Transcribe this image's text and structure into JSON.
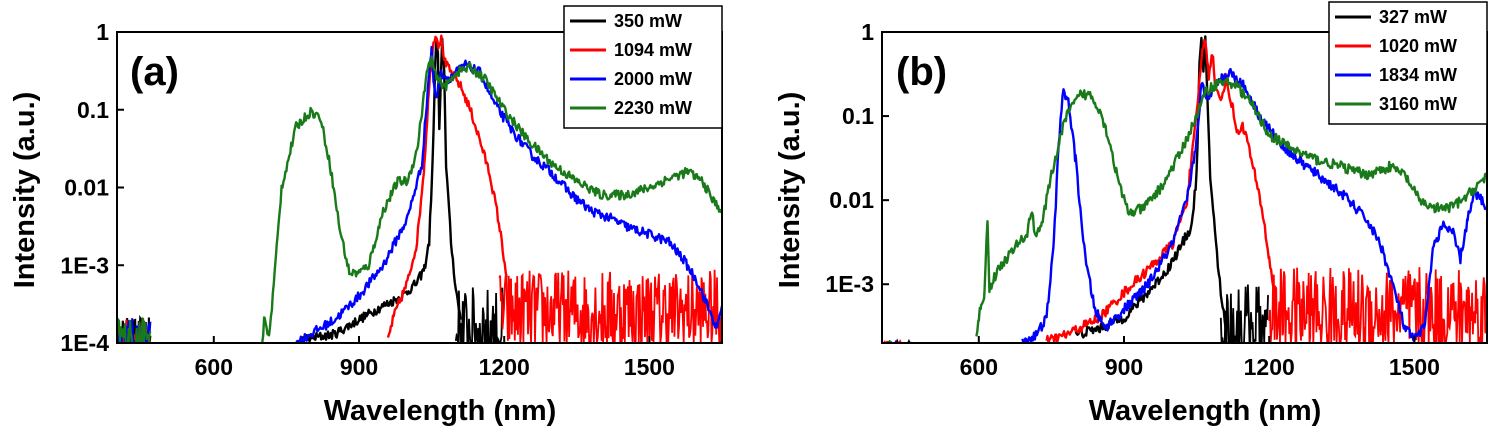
{
  "chart_data": [
    {
      "type": "line",
      "panel_label": "(a)",
      "xlabel": "Wavelength (nm)",
      "ylabel": "Intensity (a.u.)",
      "xlim": [
        400,
        1650
      ],
      "ylim": [
        0.0001,
        1
      ],
      "yscale": "log",
      "x_ticks": [
        {
          "value": 600,
          "label": "600"
        },
        {
          "value": 900,
          "label": "900"
        },
        {
          "value": 1200,
          "label": "1200"
        },
        {
          "value": 1500,
          "label": "1500"
        }
      ],
      "y_ticks": [
        {
          "value": 1,
          "label": "1"
        },
        {
          "value": 0.1,
          "label": "0.1"
        },
        {
          "value": 0.01,
          "label": "0.01"
        },
        {
          "value": 0.001,
          "label": "1E-3"
        },
        {
          "value": 0.0001,
          "label": "1E-4"
        }
      ],
      "legend_position": "top-right",
      "series": [
        {
          "name": "350 mW",
          "color": "#000000",
          "noise_floor": 0.00015,
          "noise_range": [
            1100,
            1200
          ],
          "points": [
            [
              780,
              0.00011
            ],
            [
              850,
              0.00013
            ],
            [
              900,
              0.0002
            ],
            [
              950,
              0.0003
            ],
            [
              990,
              0.0004
            ],
            [
              1020,
              0.0006
            ],
            [
              1035,
              0.0009
            ],
            [
              1045,
              0.002
            ],
            [
              1052,
              0.02
            ],
            [
              1057,
              0.3
            ],
            [
              1060,
              0.85
            ],
            [
              1063,
              0.5
            ],
            [
              1066,
              0.05
            ],
            [
              1072,
              0.9
            ],
            [
              1076,
              0.3
            ],
            [
              1080,
              0.02
            ],
            [
              1090,
              0.002
            ],
            [
              1100,
              0.0005
            ],
            [
              1110,
              0.0002
            ]
          ]
        },
        {
          "name": "1094 mW",
          "color": "#ff0000",
          "noise_floor": 0.00025,
          "noise_range": [
            1190,
            1650
          ],
          "points": [
            [
              960,
              0.00011
            ],
            [
              970,
              0.0002
            ],
            [
              980,
              0.0003
            ],
            [
              1000,
              0.0006
            ],
            [
              1020,
              0.002
            ],
            [
              1035,
              0.02
            ],
            [
              1045,
              0.2
            ],
            [
              1052,
              0.6
            ],
            [
              1058,
              0.98
            ],
            [
              1064,
              0.7
            ],
            [
              1070,
              0.8
            ],
            [
              1078,
              0.4
            ],
            [
              1090,
              0.3
            ],
            [
              1110,
              0.2
            ],
            [
              1130,
              0.1
            ],
            [
              1150,
              0.04
            ],
            [
              1170,
              0.015
            ],
            [
              1185,
              0.005
            ],
            [
              1195,
              0.002
            ],
            [
              1205,
              0.0007
            ]
          ]
        },
        {
          "name": "2000 mW",
          "color": "#0000ff",
          "noise_floor": null,
          "noise_range": null,
          "points": [
            [
              770,
              0.0001
            ],
            [
              800,
              0.00013
            ],
            [
              850,
              0.0002
            ],
            [
              900,
              0.0004
            ],
            [
              950,
              0.001
            ],
            [
              1000,
              0.004
            ],
            [
              1030,
              0.02
            ],
            [
              1045,
              0.3
            ],
            [
              1050,
              0.6
            ],
            [
              1055,
              0.2
            ],
            [
              1060,
              0.15
            ],
            [
              1070,
              0.3
            ],
            [
              1085,
              0.25
            ],
            [
              1100,
              0.3
            ],
            [
              1120,
              0.38
            ],
            [
              1150,
              0.3
            ],
            [
              1180,
              0.12
            ],
            [
              1220,
              0.05
            ],
            [
              1260,
              0.025
            ],
            [
              1300,
              0.015
            ],
            [
              1340,
              0.008
            ],
            [
              1380,
              0.005
            ],
            [
              1420,
              0.004
            ],
            [
              1460,
              0.003
            ],
            [
              1500,
              0.0025
            ],
            [
              1540,
              0.002
            ],
            [
              1570,
              0.0012
            ],
            [
              1600,
              0.0006
            ],
            [
              1620,
              0.0003
            ],
            [
              1640,
              0.00015
            ],
            [
              1650,
              0.0003
            ]
          ]
        },
        {
          "name": "2230 mW",
          "color": "#1a7a1a",
          "noise_floor": null,
          "noise_range": null,
          "points": [
            [
              700,
              0.0001
            ],
            [
              705,
              0.00022
            ],
            [
              712,
              0.00012
            ],
            [
              718,
              0.0002
            ],
            [
              740,
              0.01
            ],
            [
              770,
              0.06
            ],
            [
              800,
              0.095
            ],
            [
              820,
              0.08
            ],
            [
              840,
              0.02
            ],
            [
              860,
              0.003
            ],
            [
              880,
              0.0008
            ],
            [
              900,
              0.0008
            ],
            [
              920,
              0.001
            ],
            [
              950,
              0.005
            ],
            [
              980,
              0.012
            ],
            [
              1000,
              0.012
            ],
            [
              1020,
              0.03
            ],
            [
              1040,
              0.3
            ],
            [
              1050,
              0.45
            ],
            [
              1060,
              0.25
            ],
            [
              1080,
              0.2
            ],
            [
              1100,
              0.3
            ],
            [
              1130,
              0.35
            ],
            [
              1160,
              0.25
            ],
            [
              1200,
              0.1
            ],
            [
              1250,
              0.04
            ],
            [
              1300,
              0.02
            ],
            [
              1350,
              0.012
            ],
            [
              1400,
              0.008
            ],
            [
              1450,
              0.008
            ],
            [
              1500,
              0.01
            ],
            [
              1540,
              0.013
            ],
            [
              1580,
              0.016
            ],
            [
              1610,
              0.012
            ],
            [
              1630,
              0.007
            ],
            [
              1650,
              0.005
            ]
          ]
        }
      ]
    },
    {
      "type": "line",
      "panel_label": "(b)",
      "xlabel": "Wavelength (nm)",
      "ylabel": "Intensity (a.u.)",
      "xlim": [
        400,
        1650
      ],
      "ylim": [
        0.0002,
        1
      ],
      "yscale": "log",
      "x_ticks": [
        {
          "value": 600,
          "label": "600"
        },
        {
          "value": 900,
          "label": "900"
        },
        {
          "value": 1200,
          "label": "1200"
        },
        {
          "value": 1500,
          "label": "1500"
        }
      ],
      "y_ticks": [
        {
          "value": 1,
          "label": "1"
        },
        {
          "value": 0.1,
          "label": "0.1"
        },
        {
          "value": 0.01,
          "label": "0.01"
        },
        {
          "value": 0.001,
          "label": "1E-3"
        }
      ],
      "legend_position": "top-right",
      "series": [
        {
          "name": "327 mW",
          "color": "#000000",
          "noise_floor": 0.0003,
          "noise_range": [
            1100,
            1200
          ],
          "points": [
            [
              800,
              0.00025
            ],
            [
              850,
              0.0003
            ],
            [
              900,
              0.0004
            ],
            [
              950,
              0.0008
            ],
            [
              990,
              0.0015
            ],
            [
              1020,
              0.003
            ],
            [
              1040,
              0.005
            ],
            [
              1050,
              0.02
            ],
            [
              1056,
              0.4
            ],
            [
              1060,
              0.85
            ],
            [
              1064,
              0.3
            ],
            [
              1068,
              0.8
            ],
            [
              1072,
              0.2
            ],
            [
              1078,
              0.02
            ],
            [
              1090,
              0.003
            ],
            [
              1100,
              0.0008
            ],
            [
              1110,
              0.0003
            ]
          ]
        },
        {
          "name": "1020 mW",
          "color": "#ff0000",
          "noise_floor": 0.00045,
          "noise_range": [
            1200,
            1650
          ],
          "points": [
            [
              740,
              0.00021
            ],
            [
              780,
              0.00025
            ],
            [
              850,
              0.0004
            ],
            [
              900,
              0.0008
            ],
            [
              950,
              0.0015
            ],
            [
              1000,
              0.003
            ],
            [
              1030,
              0.01
            ],
            [
              1050,
              0.1
            ],
            [
              1060,
              0.5
            ],
            [
              1068,
              0.85
            ],
            [
              1075,
              0.3
            ],
            [
              1082,
              0.6
            ],
            [
              1090,
              0.2
            ],
            [
              1100,
              0.15
            ],
            [
              1110,
              0.28
            ],
            [
              1125,
              0.12
            ],
            [
              1135,
              0.06
            ],
            [
              1145,
              0.08
            ],
            [
              1155,
              0.05
            ],
            [
              1170,
              0.02
            ],
            [
              1185,
              0.008
            ],
            [
              1200,
              0.002
            ],
            [
              1210,
              0.0008
            ]
          ]
        },
        {
          "name": "1834 mW",
          "color": "#0000ff",
          "noise_floor": null,
          "noise_range": null,
          "points": [
            [
              690,
              0.00021
            ],
            [
              720,
              0.00025
            ],
            [
              740,
              0.0004
            ],
            [
              755,
              0.003
            ],
            [
              765,
              0.05
            ],
            [
              775,
              0.2
            ],
            [
              785,
              0.15
            ],
            [
              800,
              0.03
            ],
            [
              820,
              0.002
            ],
            [
              840,
              0.0005
            ],
            [
              860,
              0.0003
            ],
            [
              900,
              0.0005
            ],
            [
              950,
              0.001
            ],
            [
              1000,
              0.003
            ],
            [
              1030,
              0.01
            ],
            [
              1050,
              0.05
            ],
            [
              1060,
              0.25
            ],
            [
              1070,
              0.15
            ],
            [
              1090,
              0.25
            ],
            [
              1120,
              0.33
            ],
            [
              1150,
              0.22
            ],
            [
              1180,
              0.1
            ],
            [
              1220,
              0.05
            ],
            [
              1260,
              0.03
            ],
            [
              1300,
              0.02
            ],
            [
              1350,
              0.012
            ],
            [
              1400,
              0.006
            ],
            [
              1430,
              0.003
            ],
            [
              1460,
              0.0008
            ],
            [
              1480,
              0.0003
            ],
            [
              1500,
              0.00022
            ],
            [
              1520,
              0.0003
            ],
            [
              1540,
              0.003
            ],
            [
              1560,
              0.005
            ],
            [
              1580,
              0.004
            ],
            [
              1595,
              0.002
            ],
            [
              1610,
              0.006
            ],
            [
              1625,
              0.012
            ],
            [
              1640,
              0.01
            ],
            [
              1650,
              0.008
            ]
          ]
        },
        {
          "name": "3160 mW",
          "color": "#1a7a1a",
          "noise_floor": null,
          "noise_range": null,
          "points": [
            [
              595,
              0.00022
            ],
            [
              600,
              0.0004
            ],
            [
              605,
              0.0006
            ],
            [
              612,
              0.0008
            ],
            [
              618,
              0.006
            ],
            [
              622,
              0.0009
            ],
            [
              640,
              0.0015
            ],
            [
              680,
              0.003
            ],
            [
              700,
              0.004
            ],
            [
              710,
              0.008
            ],
            [
              715,
              0.004
            ],
            [
              730,
              0.005
            ],
            [
              750,
              0.02
            ],
            [
              780,
              0.1
            ],
            [
              810,
              0.18
            ],
            [
              830,
              0.18
            ],
            [
              850,
              0.12
            ],
            [
              870,
              0.05
            ],
            [
              890,
              0.015
            ],
            [
              910,
              0.007
            ],
            [
              940,
              0.008
            ],
            [
              980,
              0.015
            ],
            [
              1020,
              0.04
            ],
            [
              1050,
              0.1
            ],
            [
              1070,
              0.2
            ],
            [
              1100,
              0.26
            ],
            [
              1130,
              0.24
            ],
            [
              1160,
              0.15
            ],
            [
              1200,
              0.06
            ],
            [
              1250,
              0.04
            ],
            [
              1300,
              0.03
            ],
            [
              1350,
              0.025
            ],
            [
              1400,
              0.02
            ],
            [
              1450,
              0.025
            ],
            [
              1480,
              0.02
            ],
            [
              1510,
              0.01
            ],
            [
              1540,
              0.008
            ],
            [
              1570,
              0.008
            ],
            [
              1600,
              0.01
            ],
            [
              1630,
              0.015
            ],
            [
              1650,
              0.02
            ]
          ]
        }
      ]
    }
  ],
  "noise_left": [
    {
      "color": "#000000",
      "range": [
        400,
        470
      ],
      "level": 0.00012
    },
    {
      "color": "#ff0000",
      "range": [
        400,
        470
      ],
      "level": 0.00012
    },
    {
      "color": "#0000ff",
      "range": [
        400,
        470
      ],
      "level": 0.00012
    },
    {
      "color": "#1a7a1a",
      "range": [
        400,
        470
      ],
      "level": 0.00012
    }
  ]
}
